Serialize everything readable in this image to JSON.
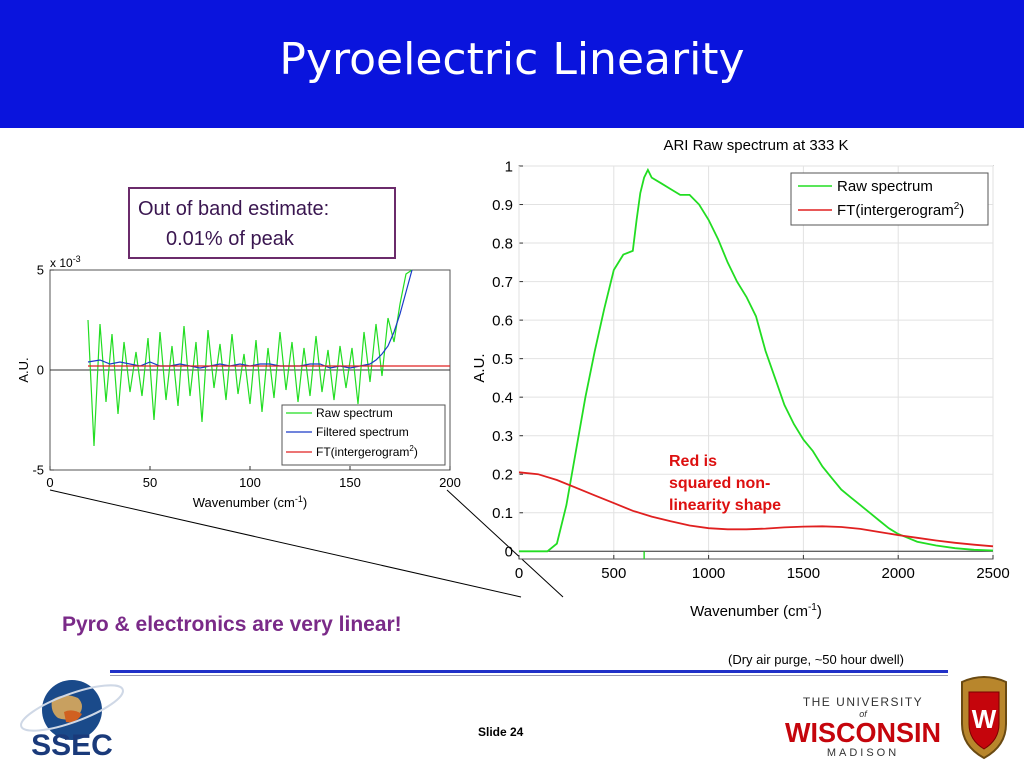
{
  "title": "Pyroelectric Linearity",
  "callout": {
    "line1": "Out of band estimate:",
    "line2": "0.01% of peak"
  },
  "headline": "Pyro & electronics are very linear!",
  "footnote": "(Dry air purge, ~50 hour dwell)",
  "slide_number": "Slide 24",
  "logos": {
    "left": "SSEC",
    "right_line1": "THE UNIVERSITY",
    "right_line2": "of",
    "right_line3": "WISCONSIN",
    "right_line4": "MADISON",
    "crest_letter": "W"
  },
  "colors": {
    "title_bar": "#0a14dd",
    "raw": "#22dd22",
    "filtered": "#1a3ac8",
    "ft": "#e02020",
    "headline": "#7a2a88",
    "annotation": "#dd1010"
  },
  "chart_data": [
    {
      "type": "line",
      "title": "",
      "xlabel": "Wavenumber (cm",
      "xlabel_sup": "-1",
      "xlabel_tail": ")",
      "ylabel": "A.U.",
      "xlim": [
        0,
        200
      ],
      "ylim": [
        -5,
        5
      ],
      "y_multiplier": "x 10",
      "y_multiplier_exp": "-3",
      "xticks": [
        "0",
        "50",
        "100",
        "150",
        "200"
      ],
      "yticks": [
        "-5",
        "0",
        "5"
      ],
      "legend_position": "bottom-right",
      "legend": [
        "Raw spectrum",
        "Filtered spectrum",
        "FT(intergerogram",
        "2",
        ")"
      ],
      "series": [
        {
          "name": "Raw spectrum",
          "x": [
            19,
            22,
            25,
            28,
            31,
            34,
            37,
            40,
            43,
            46,
            49,
            52,
            55,
            58,
            61,
            64,
            67,
            70,
            73,
            76,
            79,
            82,
            85,
            88,
            91,
            94,
            97,
            100,
            103,
            106,
            109,
            112,
            115,
            118,
            121,
            124,
            127,
            130,
            133,
            136,
            139,
            142,
            145,
            148,
            151,
            154,
            157,
            160,
            163,
            166,
            169,
            172,
            175,
            178,
            181
          ],
          "values": [
            2.5,
            -3.8,
            2.3,
            -1.6,
            1.8,
            -2.2,
            1.4,
            -1.1,
            0.9,
            -1.3,
            1.6,
            -2.5,
            1.9,
            -1.5,
            1.2,
            -1.8,
            2.2,
            -1.3,
            1.4,
            -2.6,
            2.0,
            -0.9,
            1.3,
            -1.5,
            1.8,
            -1.2,
            0.8,
            -1.7,
            1.5,
            -2.1,
            1.1,
            -1.4,
            1.9,
            -1.0,
            1.4,
            -1.6,
            1.1,
            -1.3,
            1.7,
            -1.1,
            1.0,
            -1.5,
            1.2,
            -0.9,
            1.1,
            -1.7,
            1.9,
            -0.6,
            2.3,
            -0.3,
            2.6,
            1.4,
            3.3,
            4.8,
            5.0
          ]
        },
        {
          "name": "Filtered spectrum",
          "x": [
            19,
            25,
            30,
            35,
            40,
            45,
            50,
            55,
            60,
            65,
            70,
            75,
            80,
            85,
            90,
            95,
            100,
            105,
            110,
            115,
            120,
            125,
            130,
            135,
            140,
            145,
            150,
            155,
            160,
            163,
            166,
            169,
            172,
            175,
            178,
            181
          ],
          "values": [
            0.4,
            0.5,
            0.3,
            0.4,
            0.3,
            0.2,
            0.4,
            0.2,
            0.2,
            0.3,
            0.2,
            0.1,
            0.2,
            0.3,
            0.2,
            0.3,
            0.2,
            0.3,
            0.3,
            0.2,
            0.2,
            0.2,
            0.3,
            0.3,
            0.1,
            0.2,
            0.1,
            0.2,
            0.3,
            0.5,
            0.8,
            1.2,
            1.9,
            2.8,
            3.9,
            5.0
          ]
        },
        {
          "name": "FT(intergerogram2)",
          "x": [
            19,
            200
          ],
          "values": [
            0.2,
            0.2
          ]
        }
      ]
    },
    {
      "type": "line",
      "title": "ARI Raw spectrum at 333 K",
      "xlabel": "Wavenumber (cm",
      "xlabel_sup": "-1",
      "xlabel_tail": ")",
      "ylabel": "A.U.",
      "xlim": [
        0,
        2500
      ],
      "ylim": [
        -0.02,
        1.0
      ],
      "xticks": [
        "0",
        "500",
        "1000",
        "1500",
        "2000",
        "2500"
      ],
      "yticks": [
        "0",
        "0.1",
        "0.2",
        "0.3",
        "0.4",
        "0.5",
        "0.6",
        "0.7",
        "0.8",
        "0.9",
        "1"
      ],
      "legend_position": "top-right",
      "legend": [
        "Raw spectrum",
        "FT(intergerogram",
        "2",
        ")"
      ],
      "annotation": [
        "Red is",
        "squared non-",
        "linearity shape"
      ],
      "series": [
        {
          "name": "Raw spectrum",
          "x": [
            0,
            150,
            200,
            250,
            300,
            350,
            400,
            450,
            500,
            550,
            600,
            620,
            640,
            660,
            680,
            700,
            750,
            800,
            850,
            900,
            950,
            1000,
            1050,
            1100,
            1150,
            1200,
            1250,
            1300,
            1350,
            1400,
            1450,
            1500,
            1550,
            1600,
            1650,
            1700,
            1750,
            1800,
            1850,
            1900,
            1950,
            2000,
            2050,
            2100,
            2200,
            2300,
            2400,
            2500
          ],
          "values": [
            0,
            0,
            0.02,
            0.12,
            0.26,
            0.4,
            0.52,
            0.63,
            0.73,
            0.77,
            0.78,
            0.86,
            0.93,
            0.97,
            0.99,
            0.97,
            0.955,
            0.94,
            0.925,
            0.925,
            0.9,
            0.86,
            0.81,
            0.75,
            0.7,
            0.66,
            0.61,
            0.52,
            0.45,
            0.38,
            0.33,
            0.29,
            0.26,
            0.22,
            0.19,
            0.16,
            0.14,
            0.12,
            0.1,
            0.08,
            0.06,
            0.045,
            0.035,
            0.025,
            0.015,
            0.008,
            0.004,
            0.002
          ]
        },
        {
          "name": "FT(intergerogram2)",
          "x": [
            0,
            100,
            200,
            300,
            400,
            500,
            600,
            700,
            800,
            900,
            1000,
            1100,
            1200,
            1300,
            1400,
            1500,
            1600,
            1700,
            1800,
            1900,
            2000,
            2100,
            2200,
            2300,
            2400,
            2500
          ],
          "values": [
            0.205,
            0.2,
            0.185,
            0.165,
            0.145,
            0.125,
            0.105,
            0.09,
            0.078,
            0.067,
            0.06,
            0.057,
            0.057,
            0.059,
            0.062,
            0.064,
            0.065,
            0.063,
            0.058,
            0.05,
            0.042,
            0.035,
            0.028,
            0.022,
            0.017,
            0.013
          ]
        }
      ]
    }
  ]
}
